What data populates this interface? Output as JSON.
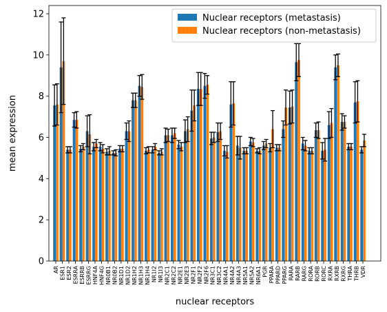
{
  "chart_data": {
    "type": "bar",
    "xlabel": "nuclear receptors",
    "ylabel": "mean expression",
    "ylim": [
      0,
      12.4
    ],
    "yticks": [
      0,
      2,
      4,
      6,
      8,
      10,
      12
    ],
    "legend_position": "top-right",
    "categories": [
      "AR",
      "ESR1",
      "ESR2",
      "ESRRA",
      "ESRRB",
      "ESRRG",
      "HNF4A",
      "HNF4G",
      "NR0B1",
      "NR0B2",
      "NR1D1",
      "NR1D2",
      "NR1H2",
      "NR1H3",
      "NR1H4",
      "NR1I2",
      "NR1I3",
      "NR2C1",
      "NR2C2",
      "NR2E1",
      "NR2E3",
      "NR2F1",
      "NR2F2",
      "NR2F6",
      "NR3C1",
      "NR3C2",
      "NR4A1",
      "NR4A2",
      "NR4A3",
      "NR5A1",
      "NR5A2",
      "NR6A1",
      "PGR",
      "PPARA",
      "PPARD",
      "PPARG",
      "RARA",
      "RARB",
      "RARG",
      "RORA",
      "RORB",
      "RORC",
      "RXRA",
      "RXRB",
      "RXRG",
      "THRA",
      "THRB",
      "VDR"
    ],
    "series": [
      {
        "name": "Nuclear receptors (metastasis)",
        "color": "#1f77b4",
        "values": [
          7.55,
          9.4,
          5.4,
          6.85,
          5.45,
          6.3,
          5.55,
          5.55,
          5.3,
          5.25,
          5.45,
          6.3,
          7.8,
          8.5,
          5.35,
          5.4,
          5.25,
          6.1,
          6.1,
          5.65,
          6.3,
          7.3,
          8.35,
          8.5,
          5.95,
          6.25,
          5.35,
          7.6,
          5.6,
          5.35,
          5.8,
          5.35,
          5.6,
          5.5,
          5.5,
          6.4,
          7.45,
          9.65,
          5.7,
          5.35,
          6.35,
          5.35,
          6.6,
          9.4,
          6.75,
          5.55,
          7.7,
          5.4
        ],
        "errors": [
          1.0,
          2.2,
          0.15,
          0.35,
          0.15,
          0.75,
          0.2,
          0.2,
          0.15,
          0.1,
          0.15,
          0.4,
          0.35,
          0.5,
          0.15,
          0.15,
          0.1,
          0.35,
          0.35,
          0.2,
          0.55,
          1.0,
          0.8,
          0.6,
          0.3,
          0.45,
          0.25,
          1.1,
          0.45,
          0.15,
          0.2,
          0.1,
          0.2,
          0.2,
          0.15,
          0.4,
          0.8,
          0.9,
          0.3,
          0.15,
          0.35,
          0.4,
          0.65,
          0.6,
          0.4,
          0.15,
          1.0,
          0.15
        ]
      },
      {
        "name": "Nuclear receptors (non-metastasis)",
        "color": "#ff7f0e",
        "values": [
          7.6,
          9.7,
          5.4,
          6.85,
          5.55,
          6.15,
          5.7,
          5.45,
          5.35,
          5.25,
          5.45,
          6.3,
          7.8,
          8.45,
          5.4,
          5.55,
          5.3,
          6.1,
          6.2,
          5.55,
          6.4,
          7.55,
          8.35,
          8.55,
          6.0,
          6.3,
          5.3,
          7.65,
          5.5,
          5.35,
          5.75,
          5.35,
          5.7,
          6.4,
          5.5,
          7.45,
          7.5,
          9.75,
          5.6,
          5.35,
          6.35,
          5.4,
          6.7,
          9.5,
          6.75,
          5.55,
          7.75,
          5.85
        ],
        "errors": [
          1.0,
          2.1,
          0.15,
          0.4,
          0.15,
          0.95,
          0.2,
          0.2,
          0.2,
          0.15,
          0.15,
          0.5,
          0.35,
          0.6,
          0.15,
          0.15,
          0.15,
          0.3,
          0.25,
          0.2,
          0.6,
          0.75,
          0.8,
          0.45,
          0.25,
          0.4,
          0.3,
          1.05,
          0.55,
          0.15,
          0.2,
          0.15,
          0.2,
          0.9,
          0.15,
          0.85,
          0.8,
          0.8,
          0.25,
          0.15,
          0.4,
          0.55,
          0.7,
          0.55,
          0.3,
          0.15,
          1.0,
          0.3
        ]
      }
    ]
  }
}
